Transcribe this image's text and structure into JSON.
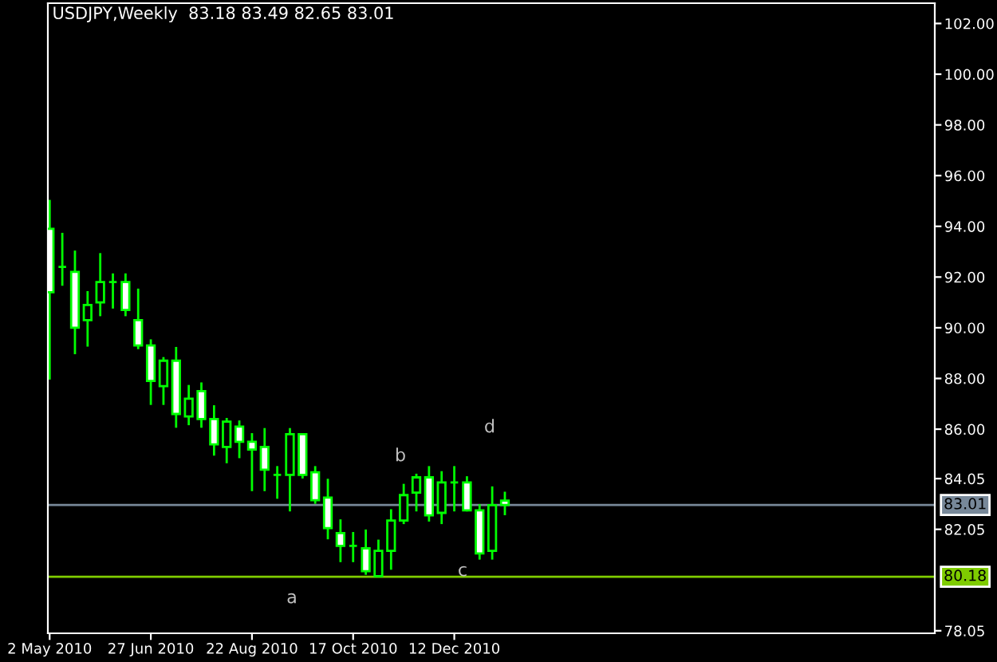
{
  "chart_data": {
    "type": "candlestick",
    "title": "USDJPY,Weekly  83.18 83.49 82.65 83.01",
    "color": "#00ff00",
    "x": [
      "2010-05-02",
      "2010-05-09",
      "2010-05-16",
      "2010-05-23",
      "2010-05-30",
      "2010-06-06",
      "2010-06-13",
      "2010-06-20",
      "2010-06-27",
      "2010-07-04",
      "2010-07-11",
      "2010-07-18",
      "2010-07-25",
      "2010-08-01",
      "2010-08-08",
      "2010-08-15",
      "2010-08-22",
      "2010-08-29",
      "2010-09-05",
      "2010-09-12",
      "2010-09-19",
      "2010-09-26",
      "2010-10-03",
      "2010-10-10",
      "2010-10-17",
      "2010-10-24",
      "2010-10-31",
      "2010-11-07",
      "2010-11-14",
      "2010-11-21",
      "2010-11-28",
      "2010-12-05",
      "2010-12-12",
      "2010-12-19",
      "2010-12-26",
      "2011-01-02",
      "2011-01-09"
    ],
    "ohlc": [
      [
        93.9,
        95.0,
        88.0,
        91.4
      ],
      [
        92.4,
        93.7,
        91.7,
        92.4
      ],
      [
        92.2,
        93.0,
        89.0,
        90.0
      ],
      [
        90.3,
        91.4,
        89.3,
        90.9
      ],
      [
        91.0,
        92.9,
        90.5,
        91.8
      ],
      [
        91.8,
        92.1,
        90.8,
        91.8
      ],
      [
        91.8,
        92.1,
        90.5,
        90.7
      ],
      [
        90.3,
        91.5,
        89.2,
        89.3
      ],
      [
        89.3,
        89.5,
        87.0,
        87.9
      ],
      [
        87.7,
        88.8,
        87.0,
        88.7
      ],
      [
        88.7,
        89.2,
        86.1,
        86.6
      ],
      [
        86.5,
        87.7,
        86.2,
        87.2
      ],
      [
        87.5,
        87.8,
        86.1,
        86.4
      ],
      [
        86.4,
        86.9,
        85.0,
        85.4
      ],
      [
        85.3,
        86.4,
        84.7,
        86.3
      ],
      [
        86.1,
        86.3,
        84.9,
        85.5
      ],
      [
        85.5,
        85.8,
        83.6,
        85.2
      ],
      [
        85.3,
        86.0,
        83.6,
        84.4
      ],
      [
        84.2,
        84.5,
        83.3,
        84.2
      ],
      [
        84.2,
        86.0,
        82.8,
        85.8
      ],
      [
        85.8,
        85.8,
        84.1,
        84.2
      ],
      [
        84.3,
        84.5,
        83.1,
        83.2
      ],
      [
        83.3,
        84.0,
        81.7,
        82.1
      ],
      [
        81.9,
        82.4,
        80.8,
        81.4
      ],
      [
        81.4,
        81.9,
        80.8,
        81.4
      ],
      [
        81.3,
        82.0,
        80.3,
        80.4
      ],
      [
        80.2,
        81.6,
        80.2,
        81.2
      ],
      [
        81.2,
        82.8,
        80.5,
        82.4
      ],
      [
        82.4,
        83.8,
        82.3,
        83.4
      ],
      [
        83.5,
        84.2,
        82.8,
        84.1
      ],
      [
        84.1,
        84.5,
        82.4,
        82.6
      ],
      [
        82.7,
        84.3,
        82.3,
        83.9
      ],
      [
        83.9,
        84.5,
        82.8,
        83.9
      ],
      [
        83.9,
        84.1,
        82.8,
        82.8
      ],
      [
        82.8,
        83.0,
        80.9,
        81.1
      ],
      [
        81.2,
        83.7,
        80.9,
        83.0
      ],
      [
        83.18,
        83.49,
        82.65,
        83.01
      ]
    ],
    "ylim": [
      77.95,
      102.8
    ],
    "xlim": [
      "2010-05-01",
      "2011-09-04"
    ],
    "yticks": [
      {
        "value": 102,
        "label": "102.00"
      },
      {
        "value": 100,
        "label": "100.00"
      },
      {
        "value": 98,
        "label": "98.00"
      },
      {
        "value": 96,
        "label": "96.00"
      },
      {
        "value": 94,
        "label": "94.00"
      },
      {
        "value": 92,
        "label": "92.00"
      },
      {
        "value": 90,
        "label": "90.00"
      },
      {
        "value": 88,
        "label": "88.00"
      },
      {
        "value": 86,
        "label": "86.00"
      },
      {
        "value": 84.05,
        "label": "84.05"
      },
      {
        "value": 82.05,
        "label": "82.05"
      },
      {
        "value": 78.05,
        "label": "78.05"
      }
    ],
    "xticks": [
      {
        "value": "2010-05-02",
        "label": "2 May 2010"
      },
      {
        "value": "2010-06-27",
        "label": "27 Jun 2010"
      },
      {
        "value": "2010-08-22",
        "label": "22 Aug 2010"
      },
      {
        "value": "2010-10-17",
        "label": "17 Oct 2010"
      },
      {
        "value": "2010-12-12",
        "label": "12 Dec 2010"
      }
    ],
    "ref_lines": [
      {
        "axis": "y",
        "value": 83.01,
        "label": "83.01",
        "color": "#778899"
      },
      {
        "axis": "y",
        "value": 80.18,
        "label": "80.18",
        "color": "#7fcc00"
      }
    ],
    "annotations": [
      "a",
      "b",
      "c",
      "d"
    ],
    "grid": false
  }
}
